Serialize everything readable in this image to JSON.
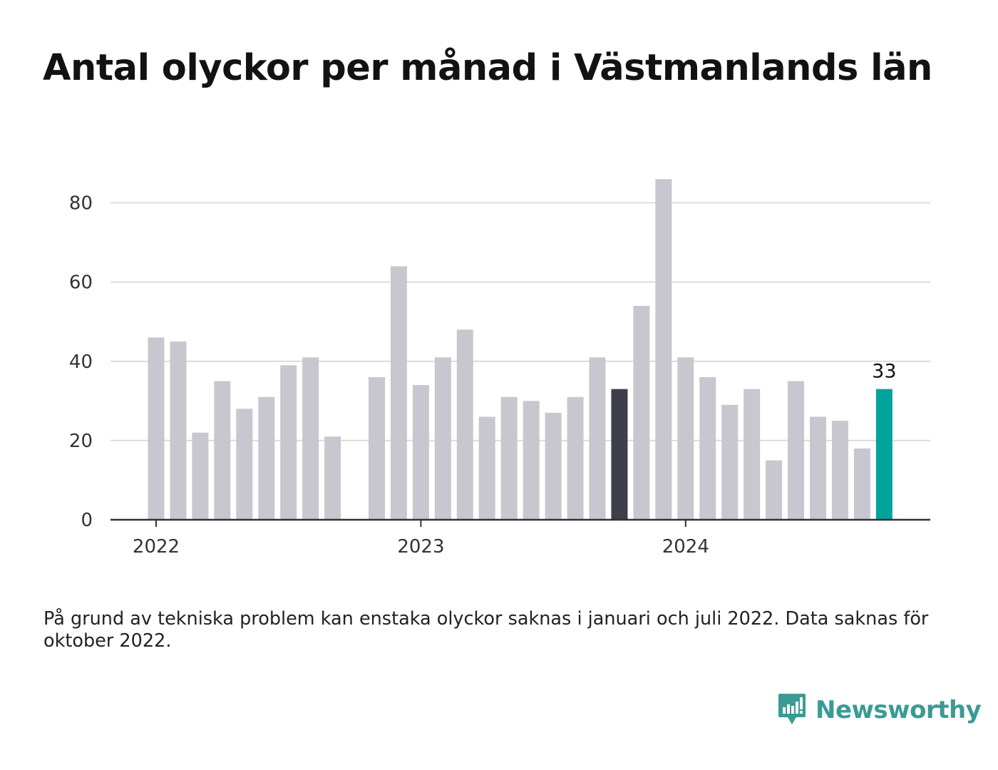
{
  "title": "Antal olyckor per månad i Västmanlands län",
  "note": "På grund av tekniska problem kan enstaka olyckor saknas i januari och juli 2022. Data saknas för oktober 2022.",
  "brand": {
    "name": "Newsworthy",
    "color": "#3a9b94"
  },
  "chart_data": {
    "type": "bar",
    "x_ticks": [
      "2022",
      "2023",
      "2024"
    ],
    "y_ticks": [
      0,
      20,
      40,
      60,
      80
    ],
    "ylim": [
      0,
      90
    ],
    "grid": true,
    "colors": {
      "default": "#c8c7d0",
      "highlight": "#3f3e4b",
      "latest": "#00a49a"
    },
    "highlight_label": "33",
    "series": [
      {
        "months": [
          "2022-01",
          "2022-02",
          "2022-03",
          "2022-04",
          "2022-05",
          "2022-06",
          "2022-07",
          "2022-08",
          "2022-09",
          "2022-10",
          "2022-11",
          "2022-12",
          "2023-01",
          "2023-02",
          "2023-03",
          "2023-04",
          "2023-05",
          "2023-06",
          "2023-07",
          "2023-08",
          "2023-09",
          "2023-10",
          "2023-11",
          "2023-12",
          "2024-01",
          "2024-02",
          "2024-03",
          "2024-04",
          "2024-05",
          "2024-06",
          "2024-07",
          "2024-08",
          "2024-09",
          "2024-10"
        ],
        "values": [
          46,
          45,
          22,
          35,
          28,
          31,
          39,
          41,
          21,
          null,
          36,
          64,
          34,
          41,
          48,
          26,
          31,
          30,
          27,
          31,
          41,
          33,
          54,
          86,
          41,
          36,
          29,
          33,
          15,
          35,
          26,
          25,
          18,
          33
        ],
        "highlight_index": 21,
        "latest_index": 33
      }
    ]
  }
}
